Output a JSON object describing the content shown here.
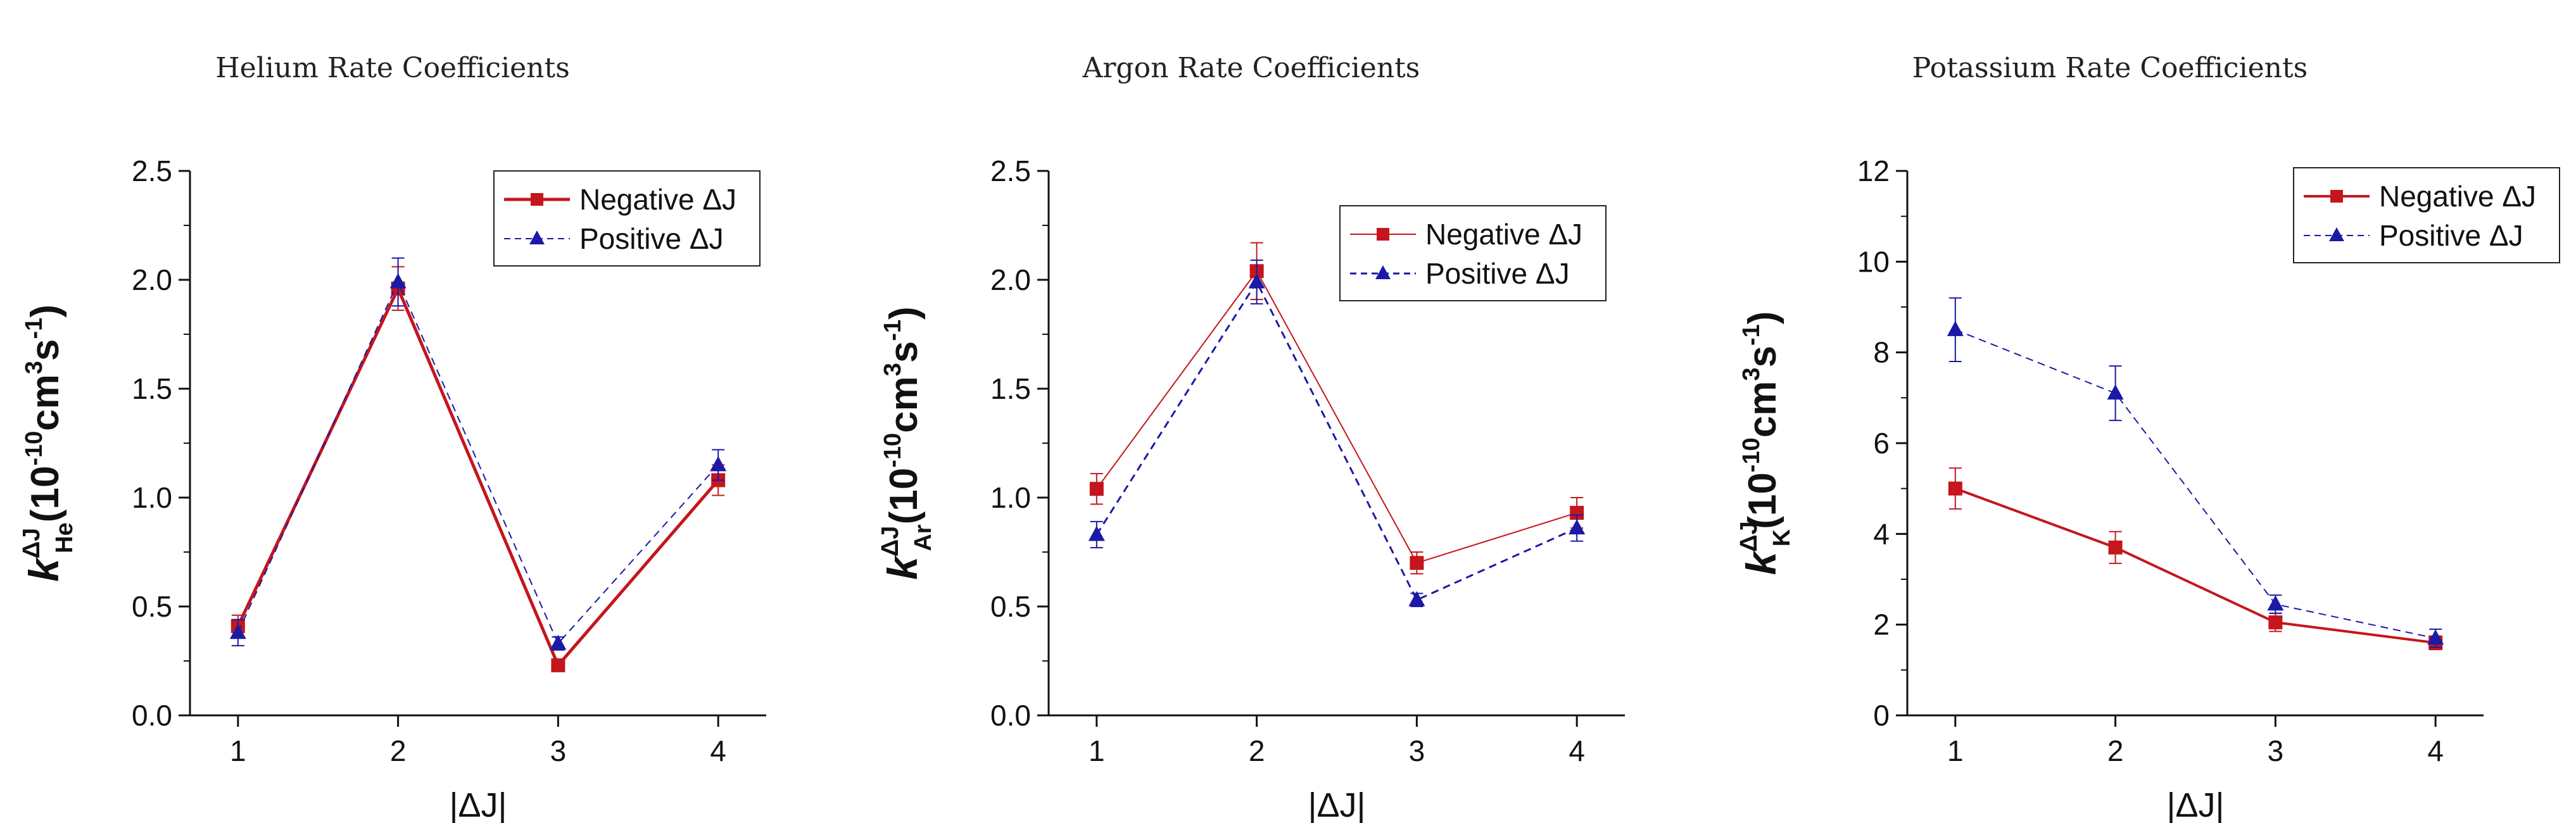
{
  "colors": {
    "negative": "#c4161c",
    "positive": "#1a1aa6"
  },
  "chart_data": [
    {
      "type": "line",
      "title": "Helium Rate Coefficients",
      "xlabel": "|ΔJ|",
      "ylabel": {
        "k": "k",
        "sup": "ΔJ",
        "sub": "He",
        "unit_open": "(10",
        "unit_exp": "-10",
        "unit_mid": "cm",
        "unit_exp2": "3",
        "unit_s": "s",
        "unit_exp3": "-1",
        "unit_close": ")"
      },
      "x": [
        1,
        2,
        3,
        4
      ],
      "xticks": [
        "1",
        "2",
        "3",
        "4"
      ],
      "xlim": [
        0.7,
        4.3
      ],
      "ylim": [
        0,
        2.5
      ],
      "yticks": [
        "0.0",
        "0.5",
        "1.0",
        "1.5",
        "2.0",
        "2.5"
      ],
      "ytick_values": [
        0,
        0.5,
        1.0,
        1.5,
        2.0,
        2.5
      ],
      "legend_position": "top-right",
      "series": [
        {
          "name": "Negative ΔJ",
          "marker": "square",
          "style": "solid",
          "width": 5,
          "values": [
            0.41,
            1.96,
            0.23,
            1.08
          ],
          "errors": [
            0.05,
            0.1,
            0.02,
            0.07
          ]
        },
        {
          "name": "Positive ΔJ",
          "marker": "triangle",
          "style": "dashed",
          "width": 2,
          "values": [
            0.38,
            1.99,
            0.33,
            1.15
          ],
          "errors": [
            0.06,
            0.11,
            0.03,
            0.07
          ]
        }
      ]
    },
    {
      "type": "line",
      "title": "Argon Rate Coefficients",
      "xlabel": "|ΔJ|",
      "ylabel": {
        "k": "k",
        "sup": "ΔJ",
        "sub": "Ar",
        "unit_open": "(10",
        "unit_exp": "-10",
        "unit_mid": "cm",
        "unit_exp2": "3",
        "unit_s": "s",
        "unit_exp3": "-1",
        "unit_close": ")"
      },
      "x": [
        1,
        2,
        3,
        4
      ],
      "xticks": [
        "1",
        "2",
        "3",
        "4"
      ],
      "xlim": [
        0.7,
        4.3
      ],
      "ylim": [
        0,
        2.5
      ],
      "yticks": [
        "0.0",
        "0.5",
        "1.0",
        "1.5",
        "2.0",
        "2.5"
      ],
      "ytick_values": [
        0,
        0.5,
        1.0,
        1.5,
        2.0,
        2.5
      ],
      "legend_position": "top-right",
      "series": [
        {
          "name": "Negative ΔJ",
          "marker": "square",
          "style": "solid",
          "width": 2,
          "values": [
            1.04,
            2.04,
            0.7,
            0.93
          ],
          "errors": [
            0.07,
            0.13,
            0.05,
            0.07
          ]
        },
        {
          "name": "Positive ΔJ",
          "marker": "triangle",
          "style": "dashed",
          "width": 3,
          "values": [
            0.83,
            1.99,
            0.53,
            0.86
          ],
          "errors": [
            0.06,
            0.1,
            0.03,
            0.06
          ]
        }
      ]
    },
    {
      "type": "line",
      "title": "Potassium Rate Coefficients",
      "xlabel": "|ΔJ|",
      "ylabel": {
        "k": "k",
        "sup": "ΔJ",
        "sub": "K",
        "unit_open": "(10",
        "unit_exp": "-10",
        "unit_mid": "cm",
        "unit_exp2": "3",
        "unit_s": "s",
        "unit_exp3": "-1",
        "unit_close": ")"
      },
      "x": [
        1,
        2,
        3,
        4
      ],
      "xticks": [
        "1",
        "2",
        "3",
        "4"
      ],
      "xlim": [
        0.7,
        4.3
      ],
      "ylim": [
        0,
        12
      ],
      "yticks": [
        "0",
        "2",
        "4",
        "6",
        "8",
        "10",
        "12"
      ],
      "ytick_values": [
        0,
        2,
        4,
        6,
        8,
        10,
        12
      ],
      "legend_position": "top-right",
      "series": [
        {
          "name": "Negative ΔJ",
          "marker": "square",
          "style": "solid",
          "width": 4,
          "values": [
            5.0,
            3.7,
            2.05,
            1.6
          ],
          "errors": [
            0.45,
            0.35,
            0.2,
            0.15
          ]
        },
        {
          "name": "Positive ΔJ",
          "marker": "triangle",
          "style": "dashed",
          "width": 2,
          "values": [
            8.5,
            7.1,
            2.45,
            1.7
          ],
          "errors": [
            0.7,
            0.6,
            0.2,
            0.2
          ]
        }
      ]
    }
  ]
}
